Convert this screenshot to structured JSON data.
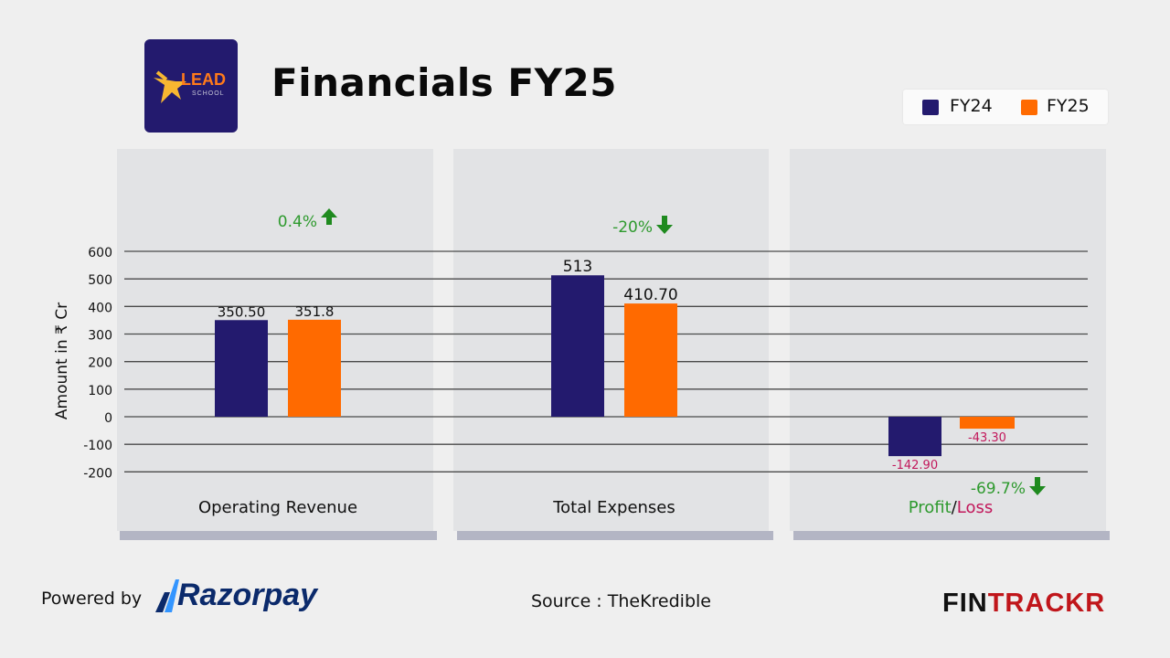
{
  "header": {
    "logo_text_main": "LEAD",
    "logo_text_sub": "SCHOOL",
    "title": "Financials FY25"
  },
  "legend": {
    "items": [
      {
        "label": "FY24",
        "color": "#231a6e"
      },
      {
        "label": "FY25",
        "color": "#ff6a00"
      }
    ]
  },
  "footer": {
    "powered_by": "Powered by",
    "razorpay": "Razorpay",
    "source": "Source : TheKredible",
    "brand_part1": "FIN",
    "brand_part2": "TRACKR"
  },
  "chart_data": {
    "type": "bar",
    "title": "Financials FY25",
    "ylabel": "Amount in ₹ Cr",
    "xlabel": "",
    "ylim": [
      -200,
      600
    ],
    "yticks": [
      600,
      500,
      400,
      300,
      200,
      100,
      0,
      -100,
      -200
    ],
    "grid": true,
    "legend_position": "top-right",
    "categories": [
      "Operating Revenue",
      "Total Expenses",
      "Profit/Loss"
    ],
    "series": [
      {
        "name": "FY24",
        "color": "#231a6e",
        "values": [
          350.5,
          513,
          -142.9
        ],
        "labels": [
          "350.50",
          "513",
          "-142.90"
        ]
      },
      {
        "name": "FY25",
        "color": "#ff6a00",
        "values": [
          351.8,
          410.7,
          -43.3
        ],
        "labels": [
          "351.8",
          "410.70",
          "-43.30"
        ]
      }
    ],
    "annotations": [
      {
        "category": "Operating Revenue",
        "text": "0.4%",
        "direction": "up",
        "color": "#2e9a2e"
      },
      {
        "category": "Total Expenses",
        "text": "-20%",
        "direction": "down",
        "color": "#2e9a2e"
      },
      {
        "category": "Profit/Loss",
        "text": "-69.7%",
        "direction": "down",
        "color": "#2e9a2e"
      }
    ],
    "category_label_parts": {
      "Profit/Loss": [
        {
          "text": "Profit",
          "color": "#2e9a2e"
        },
        {
          "text": "/",
          "color": "#111111"
        },
        {
          "text": "Loss",
          "color": "#c2185b"
        }
      ]
    },
    "negative_label_color": "#c2185b"
  }
}
